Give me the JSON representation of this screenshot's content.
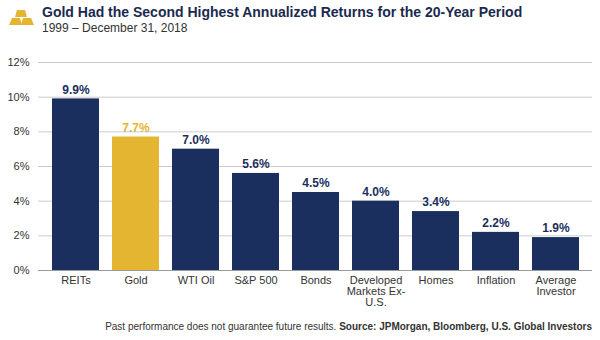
{
  "chart_data": {
    "type": "bar",
    "title": "Gold Had the Second Highest Annualized Returns for the 20-Year Period",
    "subtitle": "1999 – December 31, 2018",
    "caption": "Past performance does not guarantee future results.",
    "source": "Source: JPMorgan, Bloomberg, U.S. Global Investors",
    "categories": [
      "REITs",
      "Gold",
      "WTI Oil",
      "S&P 500",
      "Bonds",
      "Developed Markets Ex-U.S.",
      "Homes",
      "Inflation",
      "Average Investor"
    ],
    "values": [
      9.9,
      7.7,
      7.0,
      5.6,
      4.5,
      4.0,
      3.4,
      2.2,
      1.9
    ],
    "value_labels": [
      "9.9%",
      "7.7%",
      "7.0%",
      "5.6%",
      "4.5%",
      "4.0%",
      "3.4%",
      "2.2%",
      "1.9%"
    ],
    "colors": [
      "#1b2f5e",
      "#e3b530",
      "#1b2f5e",
      "#1b2f5e",
      "#1b2f5e",
      "#1b2f5e",
      "#1b2f5e",
      "#1b2f5e",
      "#1b2f5e"
    ],
    "ylim": [
      0,
      12
    ],
    "yticks": [
      {
        "value": 0,
        "label": "0%"
      },
      {
        "value": 2,
        "label": "2%"
      },
      {
        "value": 4,
        "label": "4%"
      },
      {
        "value": 6,
        "label": "6%"
      },
      {
        "value": 8,
        "label": "8%"
      },
      {
        "value": 10,
        "label": "10%"
      },
      {
        "value": 12,
        "label": "12%"
      }
    ],
    "grid": true,
    "data_labels": true
  }
}
